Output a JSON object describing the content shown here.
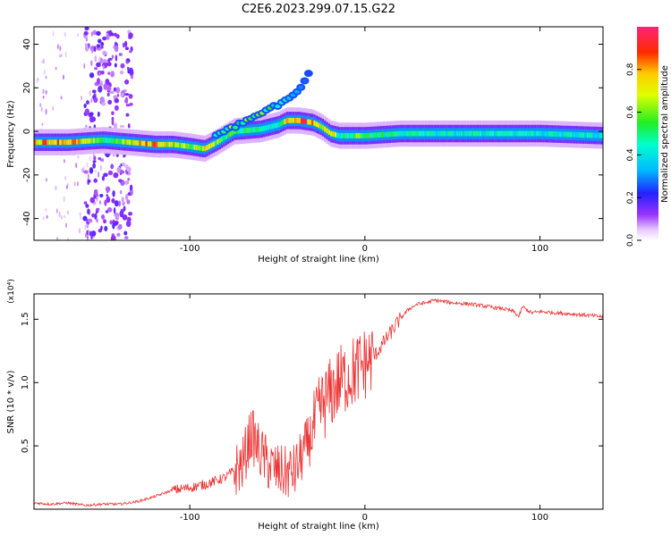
{
  "title": "C2E6.2023.299.07.15.G22",
  "colors": {
    "snr_line": "#ee3333",
    "background": "#ffffff"
  },
  "chart_data": [
    {
      "type": "heatmap",
      "title": "C2E6.2023.299.07.15.G22",
      "xlabel": "Height of straight line (km)",
      "ylabel": "Frequency (Hz)",
      "xlim": [
        -189,
        136
      ],
      "ylim": [
        -50,
        48
      ],
      "x_ticks": [
        -100,
        0,
        100
      ],
      "y_ticks": [
        -40,
        -20,
        0,
        20,
        40
      ],
      "grid": false,
      "colorbar": {
        "label": "Normalized spectral amplitude",
        "range": [
          0,
          1
        ],
        "ticks": [
          "0.0",
          "0.2",
          "0.4",
          "0.6",
          "0.8"
        ],
        "colormap": "rainbow (white-violet-blue-cyan-green-yellow-orange-red-magenta)"
      },
      "ridge": {
        "x": [
          -189,
          -170,
          -150,
          -135,
          -120,
          -110,
          -100,
          -92,
          -85,
          -75,
          -60,
          -50,
          -45,
          -38,
          -30,
          -25,
          -20,
          -15,
          -10,
          -5,
          0,
          20,
          50,
          80,
          100,
          136
        ],
        "y": [
          -5,
          -5,
          -4,
          -5,
          -6,
          -6,
          -7,
          -8,
          -5,
          0,
          1,
          3,
          5,
          5,
          4,
          2,
          -1,
          -2,
          -2,
          -2,
          -2,
          -1,
          -1,
          -1,
          -1,
          -2
        ],
        "amplitude": [
          0.85,
          0.9,
          0.5,
          0.7,
          0.9,
          0.7,
          0.6,
          0.8,
          0.6,
          0.6,
          0.5,
          0.5,
          0.85,
          0.9,
          0.85,
          0.6,
          0.8,
          0.5,
          0.5,
          0.6,
          0.55,
          0.5,
          0.45,
          0.5,
          0.45,
          0.45
        ]
      },
      "upper_branch": {
        "x": [
          -85,
          -75,
          -65,
          -55,
          -45,
          -40,
          -35,
          -30
        ],
        "y": [
          -2,
          2,
          6,
          10,
          14,
          17,
          22,
          31
        ],
        "amplitude": [
          0.5,
          0.6,
          0.6,
          0.5,
          0.4,
          0.3,
          0.25,
          0.2
        ]
      },
      "noise_band": {
        "x_range": [
          -160,
          -133
        ],
        "amplitude": 0.15
      }
    },
    {
      "type": "line",
      "xlabel": "Height of straight line (km)",
      "ylabel": "SNR (10 * v/v)",
      "y_scale_label": "(x10⁴)",
      "xlim": [
        -189,
        136
      ],
      "ylim": [
        0,
        1.7
      ],
      "x_ticks": [
        -100,
        0,
        100
      ],
      "y_ticks": [
        "0.5",
        "1.0",
        "1.5"
      ],
      "grid": false,
      "series": [
        {
          "x": [
            -189,
            -180,
            -170,
            -160,
            -150,
            -140,
            -130,
            -120,
            -110,
            -100,
            -90,
            -80,
            -70,
            -65,
            -60,
            -55,
            -50,
            -45,
            -40,
            -35,
            -30,
            -25,
            -20,
            -15,
            -10,
            -5,
            0,
            5,
            10,
            15,
            20,
            25,
            30,
            35,
            40,
            45,
            50,
            60,
            70,
            80,
            85,
            88,
            90,
            95,
            100,
            110,
            120,
            136
          ],
          "y": [
            0.05,
            0.04,
            0.05,
            0.03,
            0.04,
            0.04,
            0.06,
            0.1,
            0.15,
            0.17,
            0.2,
            0.25,
            0.35,
            0.6,
            0.45,
            0.35,
            0.3,
            0.28,
            0.3,
            0.45,
            0.6,
            0.8,
            0.9,
            1.0,
            1.05,
            1.1,
            1.15,
            1.2,
            1.3,
            1.4,
            1.5,
            1.58,
            1.62,
            1.63,
            1.65,
            1.64,
            1.63,
            1.62,
            1.6,
            1.58,
            1.56,
            1.52,
            1.6,
            1.55,
            1.56,
            1.55,
            1.54,
            1.52
          ]
        }
      ]
    }
  ]
}
